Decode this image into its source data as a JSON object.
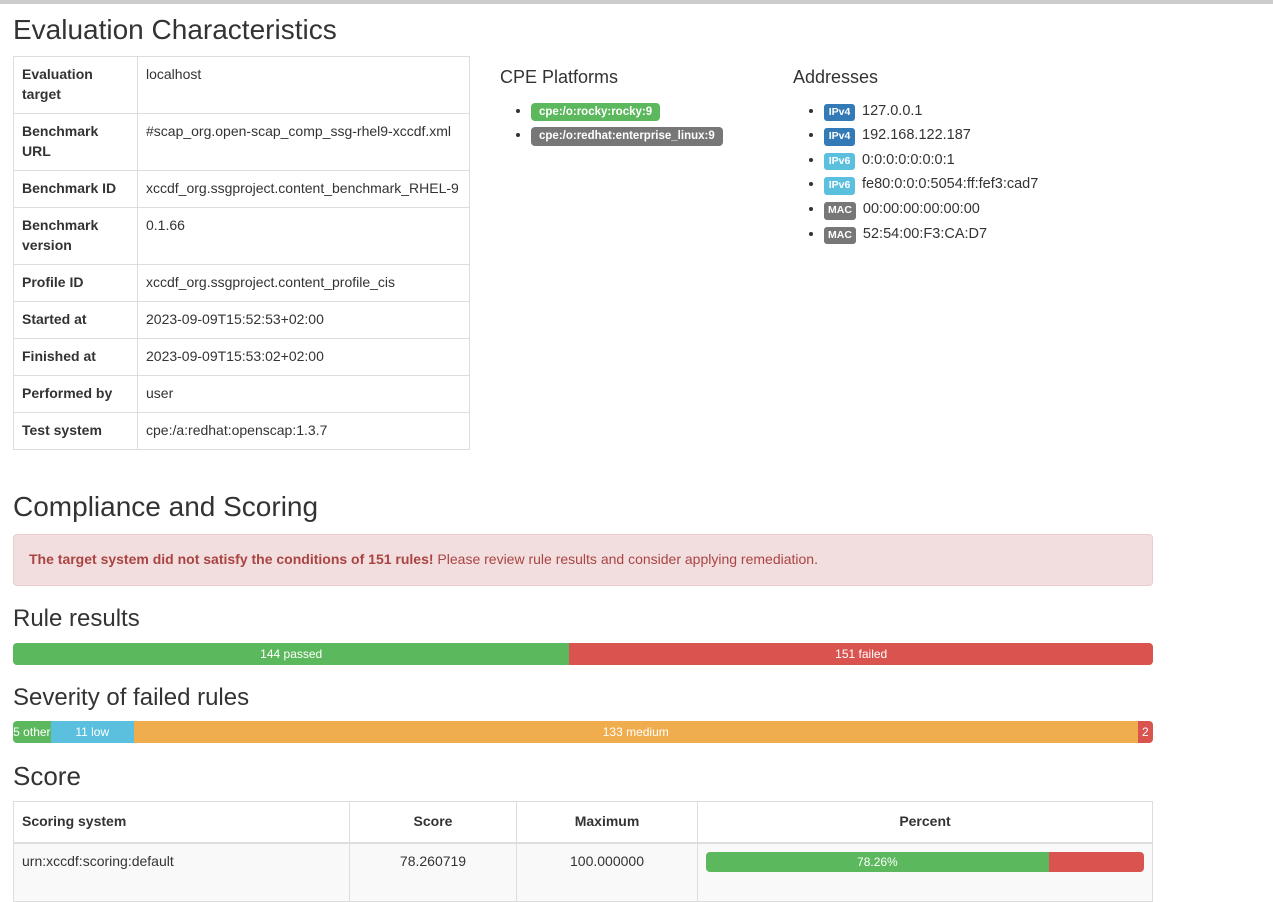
{
  "page": {
    "top_rule_color": "#cccccc"
  },
  "evaluation": {
    "title": "Evaluation Characteristics",
    "rows": [
      {
        "label": "Evaluation target",
        "value": "localhost"
      },
      {
        "label": "Benchmark URL",
        "value": "#scap_org.open-scap_comp_ssg-rhel9-xccdf.xml"
      },
      {
        "label": "Benchmark ID",
        "value": "xccdf_org.ssgproject.content_benchmark_RHEL-9"
      },
      {
        "label": "Benchmark version",
        "value": "0.1.66"
      },
      {
        "label": "Profile ID",
        "value": "xccdf_org.ssgproject.content_profile_cis"
      },
      {
        "label": "Started at",
        "value": "2023-09-09T15:52:53+02:00"
      },
      {
        "label": "Finished at",
        "value": "2023-09-09T15:53:02+02:00"
      },
      {
        "label": "Performed by",
        "value": "user"
      },
      {
        "label": "Test system",
        "value": "cpe:/a:redhat:openscap:1.3.7"
      }
    ]
  },
  "cpe": {
    "title": "CPE Platforms",
    "platforms": [
      {
        "label": "cpe:/o:rocky:rocky:9",
        "color": "#5cb85c"
      },
      {
        "label": "cpe:/o:redhat:enterprise_linux:9",
        "color": "#777777"
      }
    ]
  },
  "addresses": {
    "title": "Addresses",
    "items": [
      {
        "type": "IPv4",
        "value": "127.0.0.1",
        "color": "#337ab7"
      },
      {
        "type": "IPv4",
        "value": "192.168.122.187",
        "color": "#337ab7"
      },
      {
        "type": "IPv6",
        "value": "0:0:0:0:0:0:0:1",
        "color": "#5bc0de"
      },
      {
        "type": "IPv6",
        "value": "fe80:0:0:0:5054:ff:fef3:cad7",
        "color": "#5bc0de"
      },
      {
        "type": "MAC",
        "value": "00:00:00:00:00:00",
        "color": "#777777"
      },
      {
        "type": "MAC",
        "value": "52:54:00:F3:CA:D7",
        "color": "#777777"
      }
    ]
  },
  "compliance": {
    "title": "Compliance and Scoring",
    "alert": {
      "bold": "The target system did not satisfy the conditions of 151 rules!",
      "text": " Please review rule results and consider applying remediation.",
      "bg": "#f2dede",
      "border": "#ebccd1",
      "color": "#a94442"
    }
  },
  "rule_results": {
    "title": "Rule results",
    "segments": [
      {
        "label": "144 passed",
        "count": 144,
        "pct": 48.81,
        "color": "#5cb85c"
      },
      {
        "label": "151 failed",
        "count": 151,
        "pct": 51.19,
        "color": "#d9534f"
      }
    ]
  },
  "severity": {
    "title": "Severity of failed rules",
    "segments": [
      {
        "label": "5 other",
        "count": 5,
        "pct": 3.31,
        "color": "#5cb85c"
      },
      {
        "label": "11 low",
        "count": 11,
        "pct": 7.28,
        "color": "#5bc0de"
      },
      {
        "label": "133 medium",
        "count": 133,
        "pct": 88.08,
        "color": "#f0ad4e"
      },
      {
        "label": "2",
        "count": 2,
        "pct": 1.33,
        "color": "#d9534f"
      }
    ]
  },
  "score": {
    "title": "Score",
    "headers": [
      "Scoring system",
      "Score",
      "Maximum",
      "Percent"
    ],
    "rows": [
      {
        "system": "urn:xccdf:scoring:default",
        "score": "78.260719",
        "maximum": "100.000000",
        "percent_label": "78.26%",
        "percent_pct": 78.26,
        "remainder_pct": 21.74,
        "bar_color": "#5cb85c",
        "remainder_color": "#d9534f"
      }
    ]
  }
}
